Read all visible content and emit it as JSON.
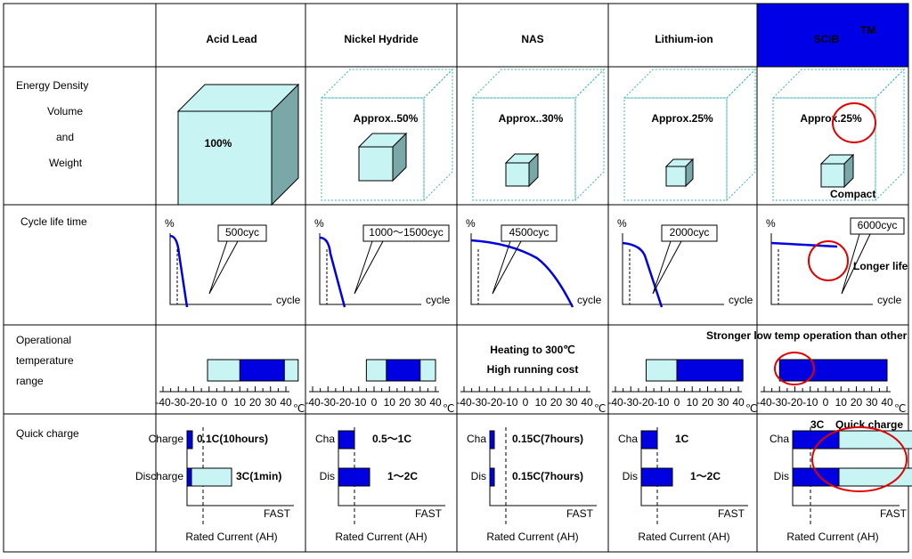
{
  "header": {
    "columns": [
      "Acid Lead",
      "Nickel  Hydride",
      "NAS",
      "Lithium-ion",
      "SCiB"
    ],
    "superscript": "TM"
  },
  "rows": {
    "energy": {
      "label": [
        "Energy Density",
        "Volume",
        "and",
        "Weight"
      ],
      "cells": [
        "100%",
        "Approx..50%",
        "Approx..30%",
        "Approx.25%",
        "Approx.25%"
      ],
      "note": "Compact"
    },
    "cycle": {
      "label": "Cycle life time",
      "y_label": "%",
      "x_label": "cycle",
      "cells": [
        "500cyc",
        "1000～1500cyc",
        "4500cyc",
        "2000cyc",
        "6000cyc"
      ],
      "note": "Longer life"
    },
    "temperature": {
      "label": [
        "Operational",
        "temperature",
        "range"
      ],
      "ticks": [
        -40,
        -30,
        -20,
        -10,
        0,
        10,
        20,
        30,
        40
      ],
      "unit": "℃",
      "ranges": [
        {
          "light": [
            -11,
            48
          ],
          "dark": [
            10,
            39
          ]
        },
        {
          "light": [
            -5,
            40
          ],
          "dark": [
            8,
            30
          ]
        },
        {
          "heating": "Heating to 300℃",
          "cost": "High running cost"
        },
        {
          "light": [
            -20,
            0
          ],
          "dark": [
            0,
            43
          ]
        },
        {
          "dark": [
            -30,
            40
          ]
        }
      ],
      "note": "Stronger  low temp operation than other"
    },
    "quick": {
      "label": "Quick charge",
      "x_label": "FAST",
      "axis_label": "Rated Current (AH)",
      "cells": [
        {
          "charge": "Charge",
          "discharge": "Discharge",
          "charge_text": "0.1C(10hours)",
          "discharge_text": "3C(1min)"
        },
        {
          "charge": "Cha",
          "discharge": "Dis",
          "charge_text": "0.5～1C",
          "discharge_text": "1～2C"
        },
        {
          "charge": "Cha",
          "discharge": "Dis",
          "charge_text": "0.15C(7hours)",
          "discharge_text": "0.15C(7hours)"
        },
        {
          "charge": "Cha",
          "discharge": "Dis",
          "charge_text": "1C",
          "discharge_text": "1～2C"
        },
        {
          "charge": "Cha",
          "discharge": "Dis",
          "rate": "3C",
          "note": "Quick charge"
        }
      ]
    }
  }
}
